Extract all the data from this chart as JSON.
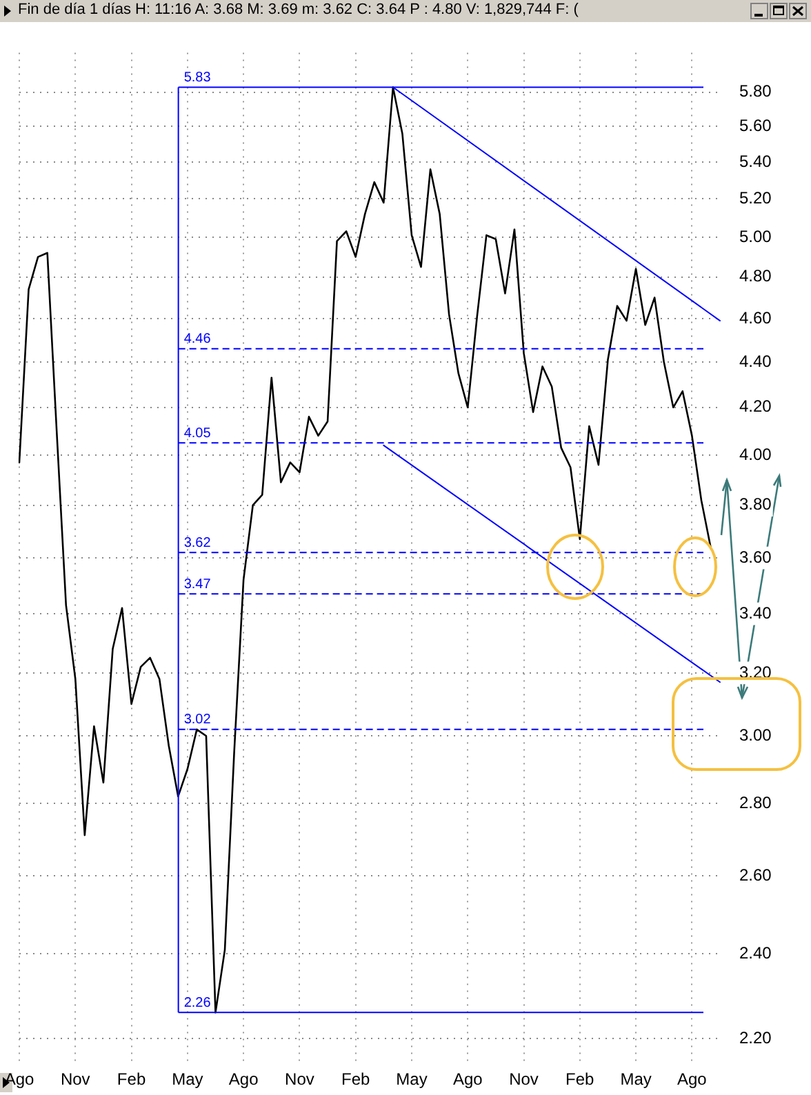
{
  "chart_data": {
    "type": "line",
    "title": "Fin de día 1 días  H: 11:16  A: 3.68  M: 3.69  m: 3.62  C: 3.64  P : 4.80  V: 1,829,744  F: (",
    "log": "y",
    "grid": true,
    "legend": false,
    "marker": "none",
    "line_style": "solid",
    "categories": [
      "Ago",
      null,
      null,
      null,
      null,
      null,
      "Nov",
      null,
      null,
      null,
      null,
      null,
      "Feb",
      null,
      null,
      null,
      null,
      null,
      "May",
      null,
      null,
      null,
      null,
      null,
      "Ago",
      null,
      null,
      null,
      null,
      null,
      "Nov",
      null,
      null,
      null,
      null,
      null,
      "Feb",
      null,
      null,
      null,
      null,
      null,
      "May",
      null,
      null,
      null,
      null,
      null,
      "Ago",
      null,
      null,
      null,
      null,
      null,
      "Nov",
      null,
      null,
      null,
      null,
      null,
      "Feb",
      null,
      null,
      null,
      null,
      null,
      "May",
      null,
      null,
      null,
      null,
      null,
      "Ago",
      null,
      null,
      null
    ],
    "ylim": [
      2.14,
      6.04
    ],
    "yticks": [
      {
        "value": 2.2,
        "label": "2.20"
      },
      {
        "value": 2.4,
        "label": "2.40"
      },
      {
        "value": 2.6,
        "label": "2.60"
      },
      {
        "value": 2.8,
        "label": "2.80"
      },
      {
        "value": 3,
        "label": "3.00"
      },
      {
        "value": 3.2,
        "label": "3.20"
      },
      {
        "value": 3.4,
        "label": "3.40"
      },
      {
        "value": 3.6,
        "label": "3.60"
      },
      {
        "value": 3.8,
        "label": "3.80"
      },
      {
        "value": 4,
        "label": "4.00"
      },
      {
        "value": 4.2,
        "label": "4.20"
      },
      {
        "value": 4.4,
        "label": "4.40"
      },
      {
        "value": 4.6,
        "label": "4.60"
      },
      {
        "value": 4.8,
        "label": "4.80"
      },
      {
        "value": 5,
        "label": "5.00"
      },
      {
        "value": 5.2,
        "label": "5.20"
      },
      {
        "value": 5.4,
        "label": "5.40"
      },
      {
        "value": 5.6,
        "label": "5.60"
      },
      {
        "value": 5.8,
        "label": "5.80"
      }
    ],
    "series": [
      {
        "color": "#000000",
        "values": [
          3.97,
          4.74,
          4.9,
          4.92,
          4.1,
          3.43,
          3.18,
          2.71,
          3.03,
          2.86,
          3.28,
          3.42,
          3.1,
          3.22,
          3.25,
          3.18,
          2.97,
          2.82,
          2.9,
          3.02,
          3.0,
          2.26,
          2.41,
          2.95,
          3.52,
          3.8,
          3.84,
          4.33,
          3.89,
          3.97,
          3.93,
          4.16,
          4.08,
          4.14,
          4.98,
          5.03,
          4.9,
          5.12,
          5.29,
          5.18,
          5.83,
          5.56,
          5.01,
          4.85,
          5.36,
          5.12,
          4.62,
          4.35,
          4.2,
          4.61,
          5.01,
          4.99,
          4.72,
          5.04,
          4.44,
          4.18,
          4.38,
          4.29,
          4.03,
          3.95,
          3.67,
          4.12,
          3.96,
          4.41,
          4.66,
          4.59,
          4.84,
          4.57,
          4.7,
          4.4,
          4.2,
          4.27,
          4.08,
          3.82,
          3.64,
          null
        ]
      },
      {
        "type": "line",
        "color": "#0000ff",
        "values": [
          null,
          null,
          null,
          null,
          null,
          null,
          null,
          null,
          null,
          null,
          null,
          null,
          null,
          null,
          null,
          null,
          null,
          null,
          null,
          null,
          null,
          null,
          null,
          null,
          null,
          null,
          null,
          null,
          null,
          null,
          null,
          null,
          null,
          null,
          null,
          null,
          null,
          null,
          null,
          null,
          5.83,
          null,
          null,
          null,
          null,
          null,
          null,
          null,
          null,
          null,
          null,
          null,
          null,
          null,
          null,
          null,
          null,
          null,
          null,
          null,
          null,
          null,
          null,
          null,
          null,
          null,
          null,
          null,
          null,
          null,
          null,
          null,
          null,
          null,
          null,
          4.59
        ]
      },
      {
        "type": "line",
        "color": "#0000ff",
        "values": [
          null,
          null,
          null,
          null,
          null,
          null,
          null,
          null,
          null,
          null,
          null,
          null,
          null,
          null,
          null,
          null,
          null,
          null,
          null,
          null,
          null,
          null,
          null,
          null,
          null,
          null,
          null,
          null,
          null,
          null,
          null,
          null,
          null,
          null,
          null,
          null,
          null,
          null,
          null,
          4.04,
          null,
          null,
          null,
          null,
          null,
          null,
          null,
          null,
          null,
          null,
          null,
          null,
          null,
          null,
          null,
          null,
          null,
          null,
          null,
          null,
          null,
          null,
          null,
          null,
          null,
          null,
          null,
          null,
          null,
          null,
          null,
          null,
          null,
          null,
          null,
          3.17
        ]
      }
    ],
    "ref_lines": [
      {
        "axis": "y",
        "value": 5.83,
        "label": "5.83",
        "color": "#0000ff",
        "line_style": "solid"
      },
      {
        "axis": "y",
        "value": 4.46,
        "label": "4.46",
        "color": "#0000ff",
        "line_style": "dashed"
      },
      {
        "axis": "y",
        "value": 4.05,
        "label": "4.05",
        "color": "#0000ff",
        "line_style": "dashed"
      },
      {
        "axis": "y",
        "value": 3.62,
        "label": "3.62",
        "color": "#0000ff",
        "line_style": "dashed"
      },
      {
        "axis": "y",
        "value": 3.47,
        "label": "3.47",
        "color": "#0000ff",
        "line_style": "dashed"
      },
      {
        "axis": "y",
        "value": 3.02,
        "label": "3.02",
        "color": "#0000ff",
        "line_style": "dashed"
      },
      {
        "axis": "y",
        "value": 2.26,
        "label": "2.26",
        "color": "#0000ff",
        "line_style": "solid"
      }
    ]
  }
}
